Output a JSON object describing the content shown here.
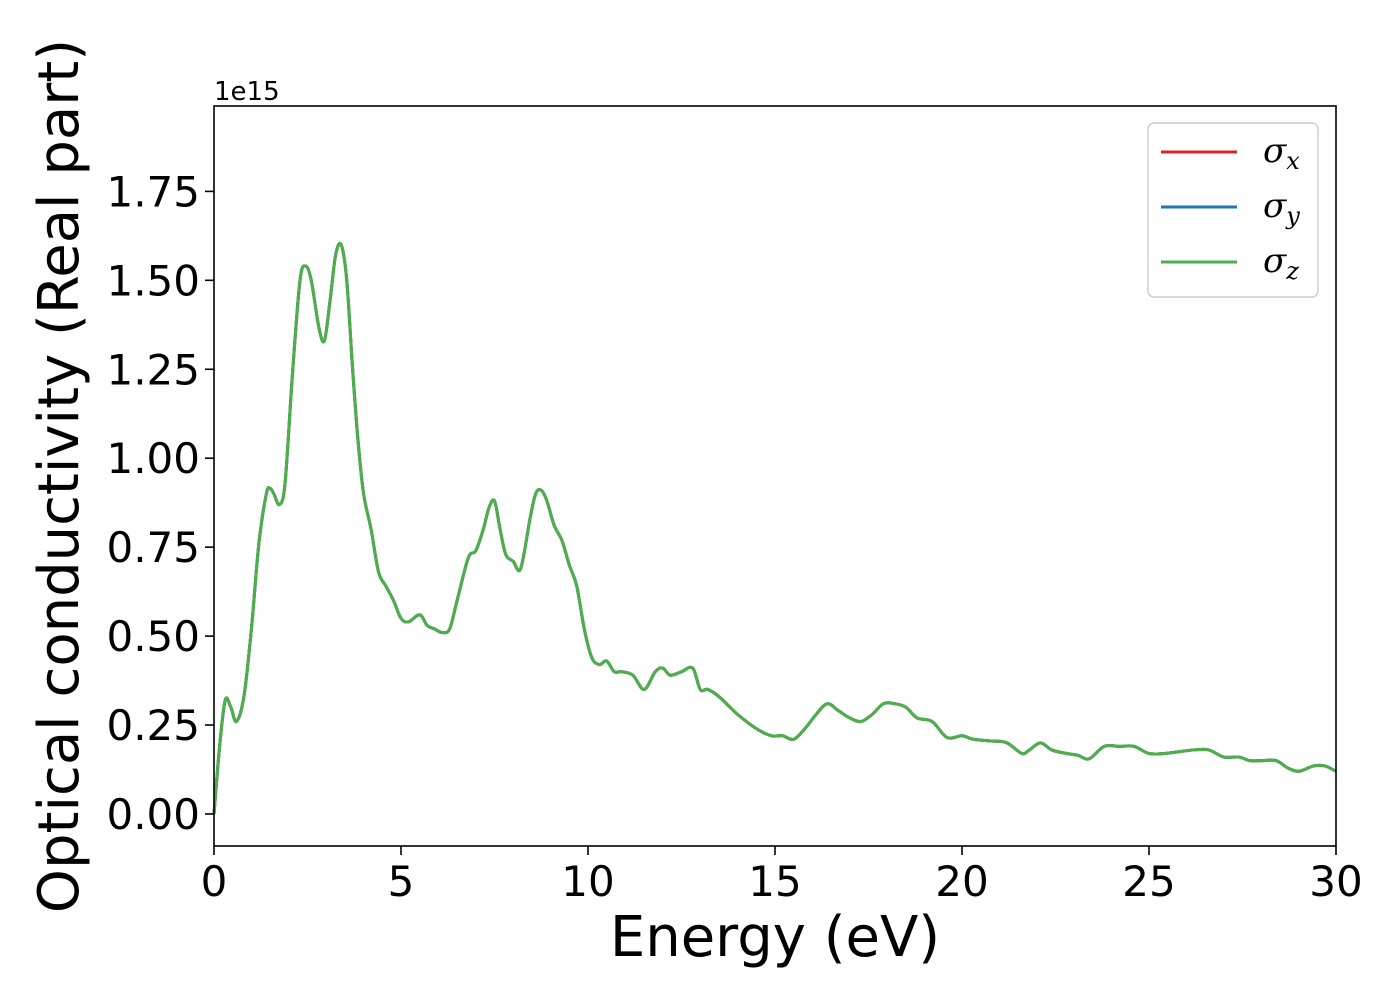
{
  "chart_data": {
    "type": "line",
    "title": "",
    "xlabel": "Energy (eV)",
    "ylabel": "Optical conductivity (Real part)",
    "y_offset_label": "1e15",
    "xlim": [
      0,
      30
    ],
    "ylim": [
      -0.09,
      1.99
    ],
    "xticks": [
      0,
      5,
      10,
      15,
      20,
      25,
      30
    ],
    "xtick_labels": [
      "0",
      "5",
      "10",
      "15",
      "20",
      "25",
      "30"
    ],
    "yticks": [
      0.0,
      0.25,
      0.5,
      0.75,
      1.0,
      1.25,
      1.5,
      1.75
    ],
    "ytick_labels": [
      "0.00",
      "0.25",
      "0.50",
      "0.75",
      "1.00",
      "1.25",
      "1.50",
      "1.75"
    ],
    "grid": false,
    "legend_position": "upper right",
    "x": [
      0,
      0.15,
      0.3,
      0.45,
      0.6,
      0.8,
      1.0,
      1.2,
      1.4,
      1.5,
      1.6,
      1.75,
      1.9,
      2.1,
      2.3,
      2.45,
      2.6,
      2.8,
      2.95,
      3.1,
      3.25,
      3.4,
      3.55,
      3.7,
      3.85,
      4.0,
      4.2,
      4.4,
      4.6,
      4.8,
      5.0,
      5.2,
      5.5,
      5.7,
      5.9,
      6.1,
      6.3,
      6.5,
      6.8,
      7.0,
      7.2,
      7.35,
      7.5,
      7.65,
      7.8,
      8.0,
      8.2,
      8.45,
      8.6,
      8.75,
      8.9,
      9.1,
      9.3,
      9.5,
      9.7,
      9.9,
      10.1,
      10.3,
      10.5,
      10.7,
      10.9,
      11.2,
      11.5,
      11.8,
      12.0,
      12.2,
      12.5,
      12.8,
      13.0,
      13.2,
      13.5,
      14.0,
      14.5,
      14.9,
      15.2,
      15.5,
      15.8,
      16.1,
      16.4,
      16.7,
      17.0,
      17.3,
      17.6,
      17.9,
      18.2,
      18.5,
      18.8,
      19.2,
      19.6,
      20.0,
      20.3,
      20.8,
      21.2,
      21.6,
      21.8,
      22.1,
      22.4,
      22.8,
      23.1,
      23.4,
      23.8,
      24.2,
      24.6,
      25.0,
      25.4,
      25.8,
      26.2,
      26.6,
      27.0,
      27.4,
      27.7,
      28.0,
      28.4,
      28.7,
      29.0,
      29.4,
      29.7,
      30.0
    ],
    "series": [
      {
        "name": "σx",
        "sub": "x",
        "color": "#d62728"
      },
      {
        "name": "σy",
        "sub": "y",
        "color": "#1f77b4"
      },
      {
        "name": "σz",
        "sub": "z",
        "color": "#4daf4a"
      }
    ],
    "y": [
      0.0,
      0.19,
      0.32,
      0.3,
      0.26,
      0.33,
      0.52,
      0.76,
      0.9,
      0.915,
      0.9,
      0.87,
      0.93,
      1.24,
      1.5,
      1.54,
      1.5,
      1.37,
      1.33,
      1.44,
      1.57,
      1.6,
      1.5,
      1.26,
      1.05,
      0.9,
      0.8,
      0.68,
      0.64,
      0.6,
      0.55,
      0.54,
      0.56,
      0.53,
      0.52,
      0.51,
      0.52,
      0.6,
      0.72,
      0.74,
      0.8,
      0.86,
      0.88,
      0.8,
      0.73,
      0.71,
      0.69,
      0.83,
      0.9,
      0.91,
      0.88,
      0.81,
      0.77,
      0.7,
      0.64,
      0.52,
      0.44,
      0.42,
      0.43,
      0.4,
      0.4,
      0.39,
      0.35,
      0.4,
      0.41,
      0.39,
      0.4,
      0.41,
      0.35,
      0.35,
      0.33,
      0.28,
      0.24,
      0.22,
      0.22,
      0.21,
      0.24,
      0.28,
      0.31,
      0.29,
      0.27,
      0.26,
      0.28,
      0.31,
      0.31,
      0.3,
      0.27,
      0.26,
      0.215,
      0.22,
      0.21,
      0.205,
      0.2,
      0.17,
      0.18,
      0.2,
      0.18,
      0.17,
      0.165,
      0.155,
      0.19,
      0.19,
      0.19,
      0.17,
      0.17,
      0.175,
      0.18,
      0.18,
      0.16,
      0.16,
      0.15,
      0.15,
      0.15,
      0.13,
      0.12,
      0.135,
      0.135,
      0.12
    ]
  }
}
